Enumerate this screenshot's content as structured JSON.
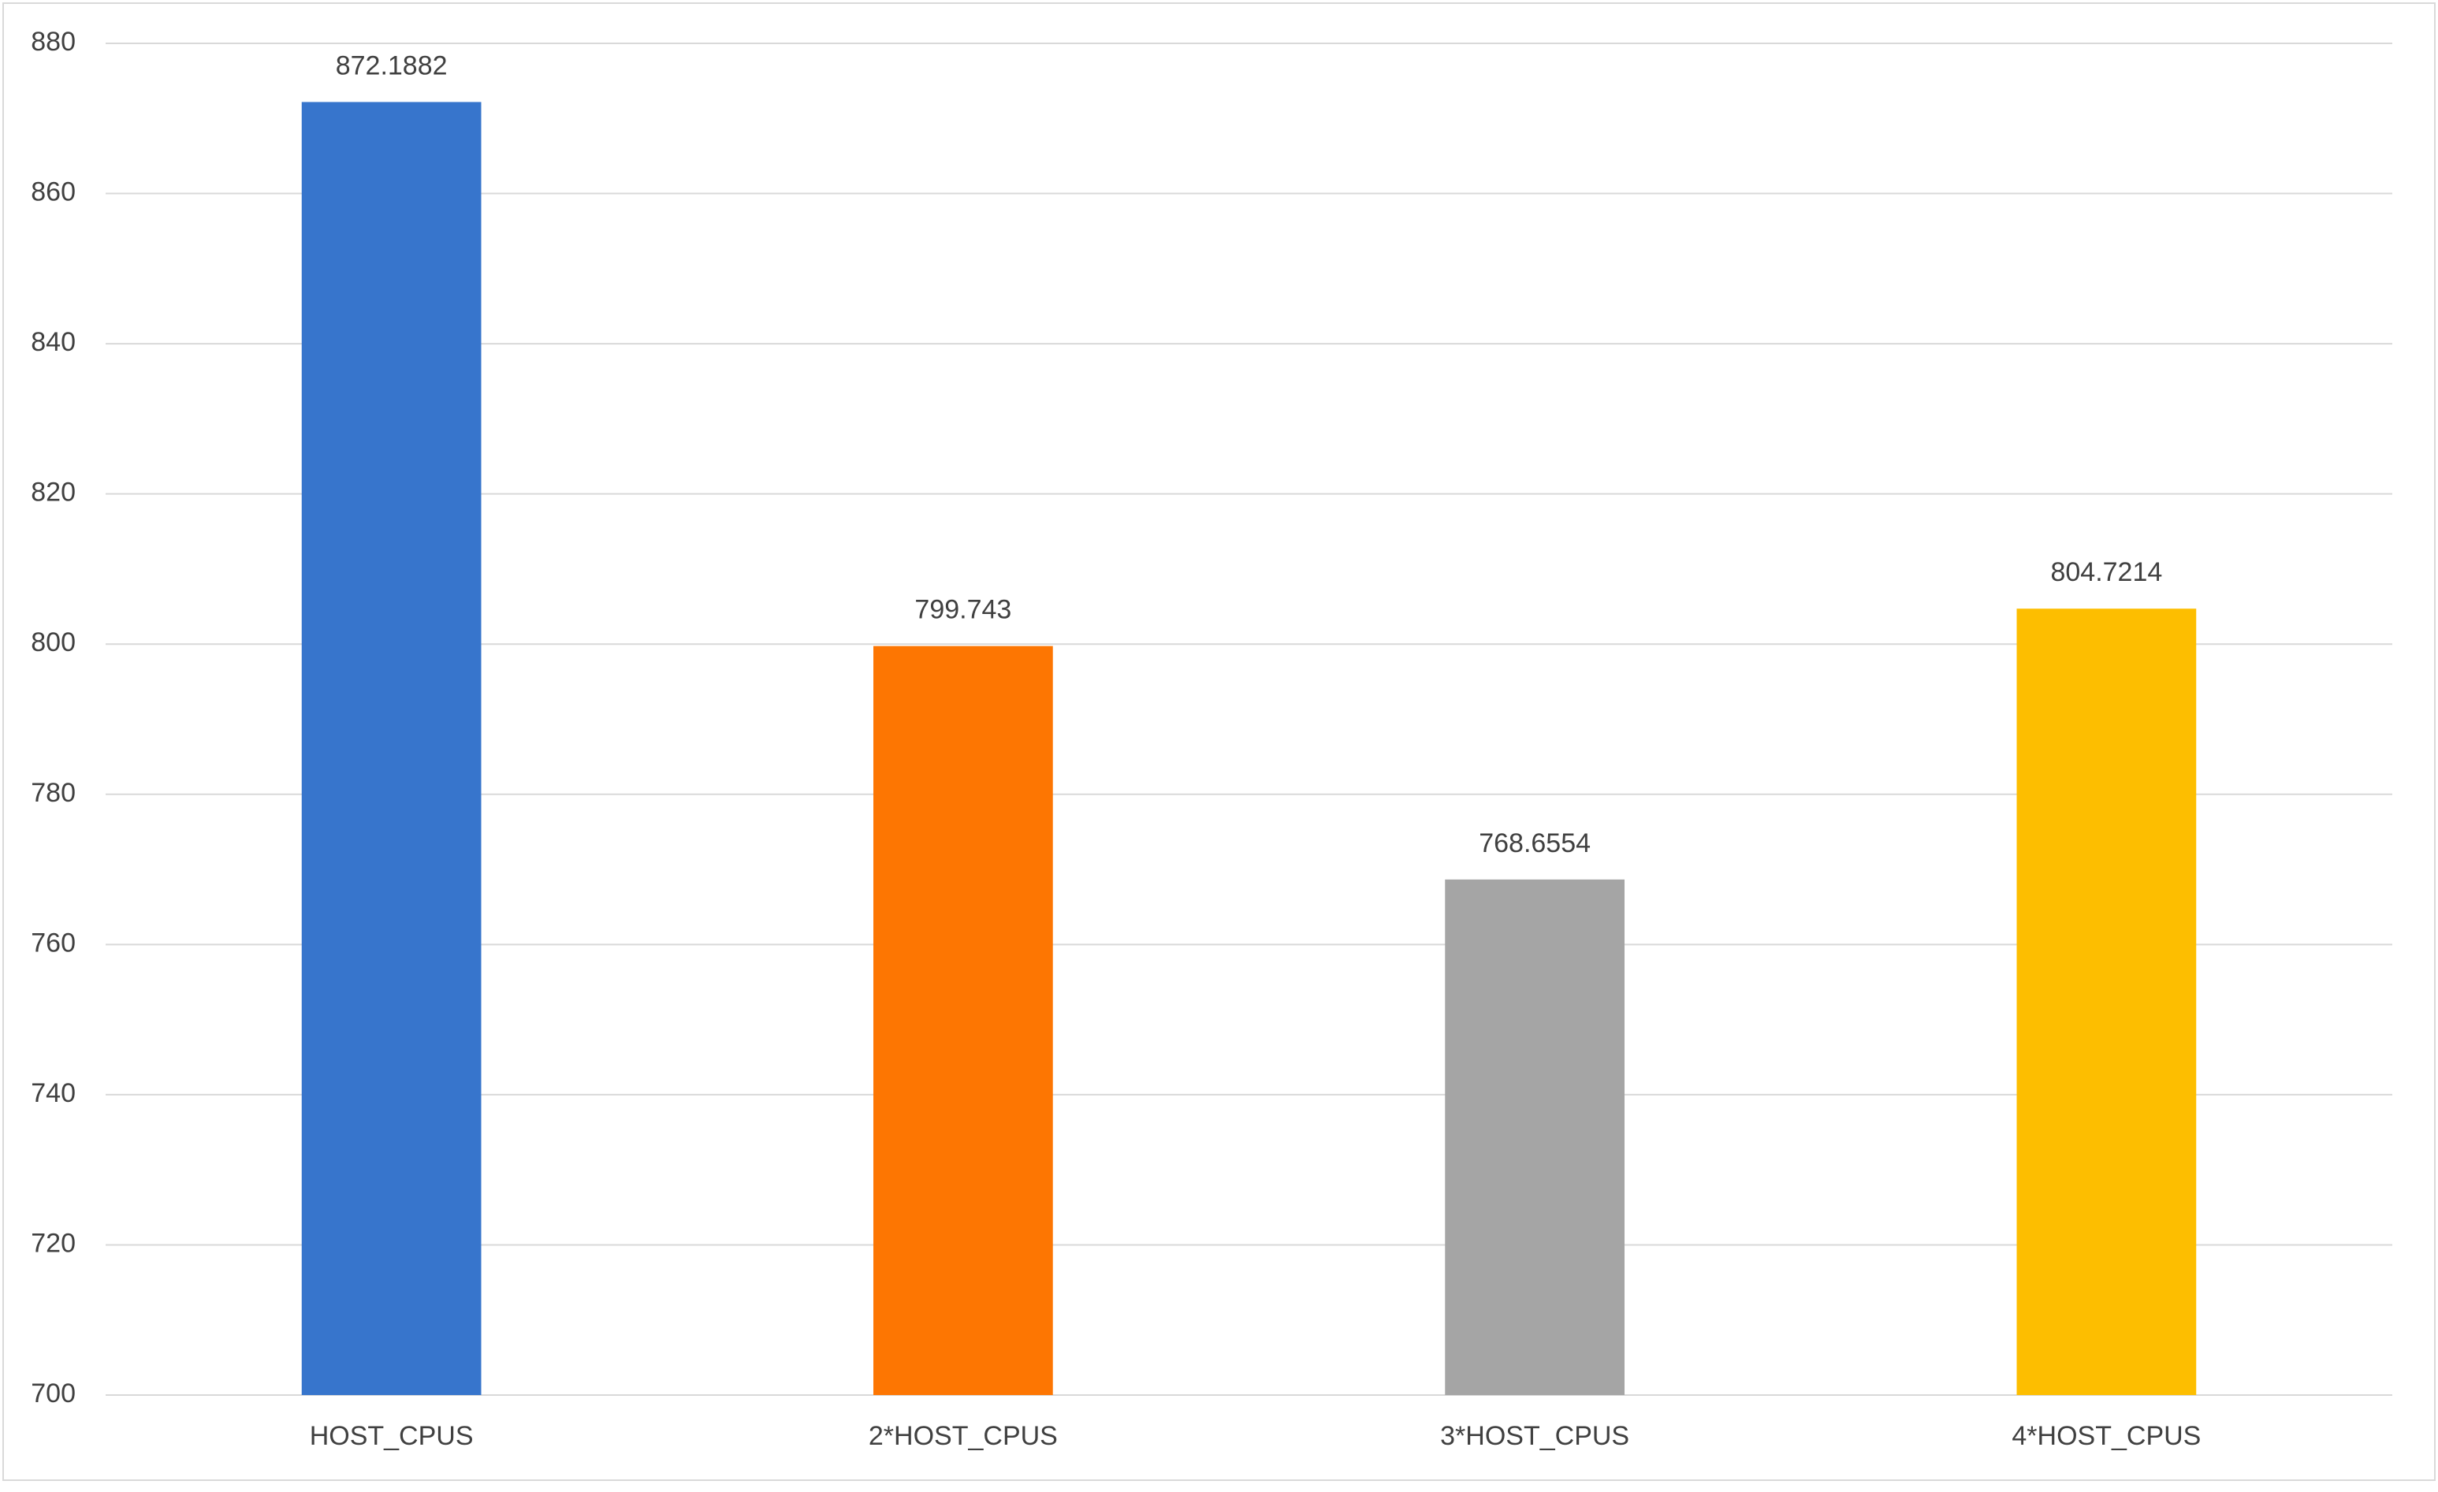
{
  "chart_data": {
    "type": "bar",
    "categories": [
      "HOST_CPUS",
      "2*HOST_CPUS",
      "3*HOST_CPUS",
      "4*HOST_CPUS"
    ],
    "values": [
      872.1882,
      799.743,
      768.6554,
      804.7214
    ],
    "colors": [
      "#3775cc",
      "#fd7602",
      "#a5a5a5",
      "#fdbe00"
    ],
    "ylim": [
      700,
      880
    ],
    "yticks": [
      700,
      720,
      740,
      760,
      780,
      800,
      820,
      840,
      860,
      880
    ],
    "grid": true
  }
}
